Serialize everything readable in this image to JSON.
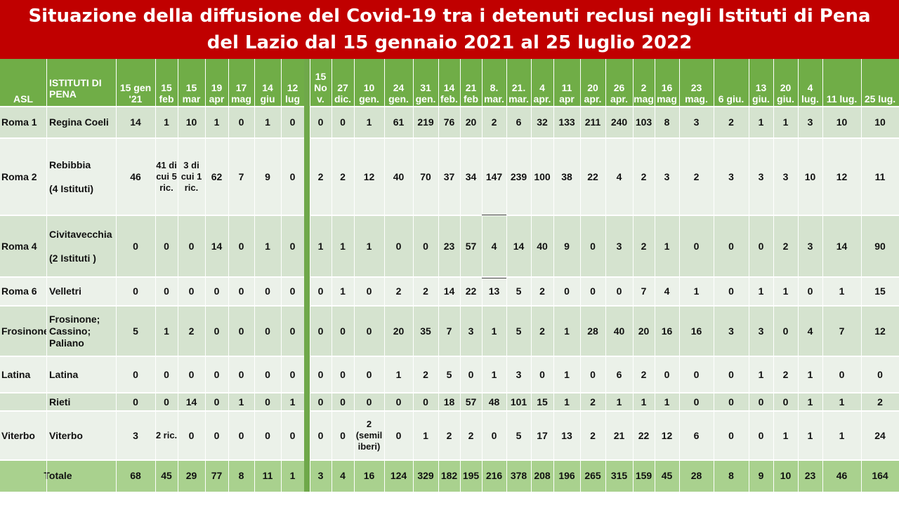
{
  "title": {
    "line1": "Situazione della diffusione del Covid-19 tra i detenuti reclusi negli Istituti di Pena",
    "line2": "del Lazio dal 15 gennaio 2021 al 25 luglio 2022"
  },
  "colors": {
    "title_bg": "#c00000",
    "header_bg": "#70ad47",
    "row_dark": "#d5e3cf",
    "row_light": "#ebf1e9",
    "total_row": "#a9d18e",
    "separator": "#6fa84a"
  },
  "header": {
    "asl": "ASL",
    "istituti": "ISTITUTI DI PENA",
    "dates": [
      "15 gen '21",
      "15 feb",
      "15 mar",
      "19 apr",
      "17 mag",
      "14 giu",
      "12 lug",
      "",
      "15 No v.",
      "27 dic.",
      "10 gen.",
      "24 gen.",
      "31 gen.",
      "14 feb.",
      "21 feb",
      "8. mar.",
      "21. mar.",
      "4 apr.",
      "11 apr",
      "20 apr.",
      "26 apr.",
      "2 mag",
      "16 mag",
      "23 mag.",
      "6 giu.",
      "13 giu.",
      "20 giu.",
      "4 lug.",
      "11 lug.",
      "25 lug."
    ]
  },
  "rows": [
    {
      "asl": "Roma 1",
      "istituto": "Regina Coeli",
      "values": [
        "14",
        "1",
        "10",
        "1",
        "0",
        "1",
        "0",
        "",
        "0",
        "0",
        "1",
        "61",
        "219",
        "76",
        "20",
        "2",
        "6",
        "32",
        "133",
        "211",
        "240",
        "103",
        "8",
        "3",
        "2",
        "1",
        "1",
        "3",
        "10",
        "10"
      ]
    },
    {
      "asl": "Roma 2",
      "istituto": "Rebibbia\n\n(4 Istituti)",
      "values": [
        "46",
        "41 di cui 5 ric.",
        "3 di cui 1 ric.",
        "62",
        "7",
        "9",
        "0",
        "",
        "2",
        "2",
        "12",
        "40",
        "70",
        "37",
        "34",
        "147",
        "239",
        "100",
        "38",
        "22",
        "4",
        "2",
        "3",
        "2",
        "3",
        "3",
        "3",
        "10",
        "12",
        "11"
      ]
    },
    {
      "asl": "Roma 4",
      "istituto": "Civitavecchia\n\n(2 Istituti )",
      "values": [
        "0",
        "0",
        "0",
        "14",
        "0",
        "1",
        "0",
        "",
        "1",
        "1",
        "1",
        "0",
        "0",
        "23",
        "57",
        "4",
        "14",
        "40",
        "9",
        "0",
        "3",
        "2",
        "1",
        "0",
        "0",
        "0",
        "2",
        "3",
        "14",
        "90"
      ]
    },
    {
      "asl": "Roma 6",
      "istituto": "Velletri",
      "values": [
        "0",
        "0",
        "0",
        "0",
        "0",
        "0",
        "0",
        "",
        "0",
        "1",
        "0",
        "2",
        "2",
        "14",
        "22",
        "13",
        "5",
        "2",
        "0",
        "0",
        "0",
        "7",
        "4",
        "1",
        "0",
        "1",
        "1",
        "0",
        "1",
        "15"
      ]
    },
    {
      "asl": "Frosinone",
      "istituto": "Frosinone; Cassino; Paliano",
      "values": [
        "5",
        "1",
        "2",
        "0",
        "0",
        "0",
        "0",
        "",
        "0",
        "0",
        "0",
        "20",
        "35",
        "7",
        "3",
        "1",
        "5",
        "2",
        "1",
        "28",
        "40",
        "20",
        "16",
        "16",
        "3",
        "3",
        "0",
        "4",
        "7",
        "12"
      ]
    },
    {
      "asl": "Latina",
      "istituto": "Latina",
      "values": [
        "0",
        "0",
        "0",
        "0",
        "0",
        "0",
        "0",
        "",
        "0",
        "0",
        "0",
        "1",
        "2",
        "5",
        "0",
        "1",
        "3",
        "0",
        "1",
        "0",
        "6",
        "2",
        "0",
        "0",
        "0",
        "1",
        "2",
        "1",
        "0",
        "0"
      ]
    },
    {
      "asl": "",
      "istituto": "Rieti",
      "values": [
        "0",
        "0",
        "14",
        "0",
        "1",
        "0",
        "1",
        "",
        "0",
        "0",
        "0",
        "0",
        "0",
        "18",
        "57",
        "48",
        "101",
        "15",
        "1",
        "2",
        "1",
        "1",
        "1",
        "0",
        "0",
        "0",
        "0",
        "1",
        "1",
        "2"
      ]
    },
    {
      "asl": "Viterbo",
      "istituto": "Viterbo",
      "values": [
        "3",
        "2 ric.",
        "0",
        "0",
        "0",
        "0",
        "0",
        "",
        "0",
        "0",
        "2 (semil iberi)",
        "0",
        "1",
        "2",
        "2",
        "0",
        "5",
        "17",
        "13",
        "2",
        "21",
        "22",
        "12",
        "6",
        "0",
        "0",
        "1",
        "1",
        "1",
        "24"
      ]
    }
  ],
  "total": {
    "label": "Totale",
    "values": [
      "68",
      "45",
      "29",
      "77",
      "8",
      "11",
      "1",
      "",
      "3",
      "4",
      "16",
      "124",
      "329",
      "182",
      "195",
      "216",
      "378",
      "208",
      "196",
      "265",
      "315",
      "159",
      "45",
      "28",
      "8",
      "9",
      "10",
      "23",
      "46",
      "164"
    ]
  }
}
